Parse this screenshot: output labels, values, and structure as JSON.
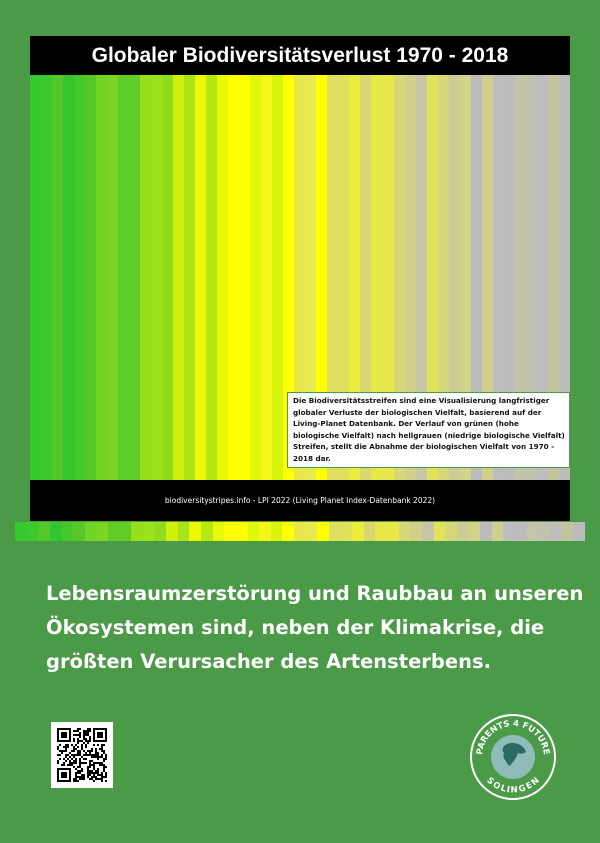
{
  "title": "Globaler Biodiversitätsverlust 1970 - 2018",
  "stripes": {
    "first_year": 1970,
    "last_year": 2018,
    "colors": [
      "#34c92e",
      "#3cc92e",
      "#52c928",
      "#33c52e",
      "#45c82c",
      "#55c828",
      "#6fd424",
      "#7ad622",
      "#60cc26",
      "#62cc26",
      "#96e01a",
      "#9ae21a",
      "#90dc1c",
      "#d0f00a",
      "#a8e418",
      "#eef800",
      "#b4e812",
      "#e8fa06",
      "#ffff00",
      "#ffff00",
      "#def808",
      "#f4f81a",
      "#d8f408",
      "#ffff00",
      "#e8e84a",
      "#e8e850",
      "#ffff00",
      "#dede60",
      "#e0e05a",
      "#ecec3c",
      "#d8d870",
      "#e8e848",
      "#e8e84a",
      "#d8d878",
      "#d0d08a",
      "#c6c6a6",
      "#e2e25a",
      "#d6d67a",
      "#cccc96",
      "#d2d288",
      "#bcbcbc",
      "#d0d08e",
      "#bdbdbd",
      "#bcbcbc",
      "#c4c4a8",
      "#c2c2b0",
      "#bdbdbd",
      "#c4c4a0",
      "#bcbcbc"
    ]
  },
  "info_box": "Die Biodiversitätsstreifen sind eine Visualisierung langfristiger globaler Verluste der biologischen Vielfalt, basierend auf der Living-Planet Datenbank. Der Verlauf von grünen (hohe biologische Vielfalt) nach hellgrauen (niedrige biologische Vielfalt) Streifen, stellt die Abnahme der biologischen Vielfalt von 1970 - 2018 dar.",
  "source": "biodiversitystripes.info - LPI 2022 (Living Planet Index-Datenbank 2022)",
  "headline": [
    "Lebensraumzerstörung und Raubbau an unseren",
    "Ökosystemen sind, neben der Klimakrise, die",
    "größten Verursacher des Artensterbens."
  ],
  "logo": {
    "top": "PARENTS 4 FUTURE",
    "bottom": "SOLINGEN"
  },
  "colors": {
    "background": "#4b9a48",
    "bar": "#000000"
  }
}
